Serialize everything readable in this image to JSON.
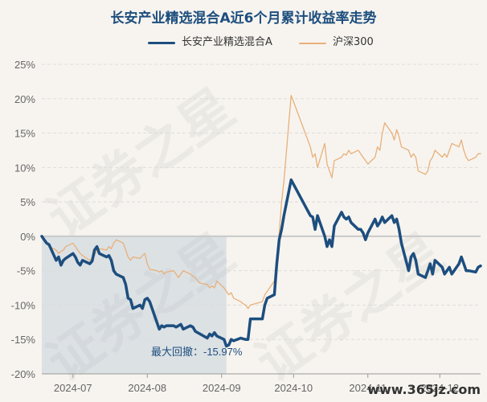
{
  "chart_data": {
    "type": "line",
    "title": "长安产业精选混合A近6个月累计收益率走势",
    "xlabel": "",
    "ylabel": "",
    "ylim": [
      -20,
      25
    ],
    "yticks": [
      25,
      20,
      15,
      10,
      5,
      0,
      -5,
      -10,
      -15,
      -20
    ],
    "ytick_labels": [
      "25%",
      "20%",
      "15%",
      "10%",
      "5%",
      "0%",
      "-5%",
      "-10%",
      "-15%",
      "-20%"
    ],
    "xtick_labels": [
      "2024-07",
      "2024-08",
      "2024-09",
      "2024-10",
      "2024-11",
      "2024-12"
    ],
    "grid": true,
    "legend_position": "top-center",
    "x_start": "2024-06-18",
    "x_end": "2024-12-18",
    "series": [
      {
        "name": "长安产业精选混合A",
        "color": "#1d4e7e",
        "points": [
          [
            "2024-06-18",
            0.0
          ],
          [
            "2024-06-19",
            -0.5
          ],
          [
            "2024-06-20",
            -1.0
          ],
          [
            "2024-06-21",
            -1.2
          ],
          [
            "2024-06-24",
            -3.5
          ],
          [
            "2024-06-25",
            -3.0
          ],
          [
            "2024-06-26",
            -4.2
          ],
          [
            "2024-06-27",
            -3.5
          ],
          [
            "2024-06-28",
            -3.2
          ],
          [
            "2024-07-01",
            -2.5
          ],
          [
            "2024-07-02",
            -3.0
          ],
          [
            "2024-07-03",
            -3.8
          ],
          [
            "2024-07-04",
            -4.2
          ],
          [
            "2024-07-05",
            -3.5
          ],
          [
            "2024-07-08",
            -4.0
          ],
          [
            "2024-07-09",
            -3.6
          ],
          [
            "2024-07-10",
            -2.0
          ],
          [
            "2024-07-11",
            -1.5
          ],
          [
            "2024-07-12",
            -2.5
          ],
          [
            "2024-07-15",
            -3.0
          ],
          [
            "2024-07-16",
            -2.8
          ],
          [
            "2024-07-17",
            -3.5
          ],
          [
            "2024-07-18",
            -5.0
          ],
          [
            "2024-07-19",
            -5.5
          ],
          [
            "2024-07-22",
            -6.0
          ],
          [
            "2024-07-23",
            -7.0
          ],
          [
            "2024-07-24",
            -9.0
          ],
          [
            "2024-07-25",
            -9.2
          ],
          [
            "2024-07-26",
            -10.5
          ],
          [
            "2024-07-29",
            -10.0
          ],
          [
            "2024-07-30",
            -10.5
          ],
          [
            "2024-07-31",
            -9.2
          ],
          [
            "2024-08-01",
            -9.0
          ],
          [
            "2024-08-02",
            -9.5
          ],
          [
            "2024-08-05",
            -12.5
          ],
          [
            "2024-08-06",
            -13.5
          ],
          [
            "2024-08-07",
            -13.0
          ],
          [
            "2024-08-08",
            -13.2
          ],
          [
            "2024-08-09",
            -13.0
          ],
          [
            "2024-08-12",
            -13.0
          ],
          [
            "2024-08-13",
            -13.2
          ],
          [
            "2024-08-14",
            -13.0
          ],
          [
            "2024-08-15",
            -12.8
          ],
          [
            "2024-08-16",
            -13.5
          ],
          [
            "2024-08-19",
            -13.0
          ],
          [
            "2024-08-20",
            -13.2
          ],
          [
            "2024-08-21",
            -13.8
          ],
          [
            "2024-08-22",
            -14.0
          ],
          [
            "2024-08-23",
            -14.2
          ],
          [
            "2024-08-26",
            -14.8
          ],
          [
            "2024-08-27",
            -14.2
          ],
          [
            "2024-08-28",
            -14.5
          ],
          [
            "2024-08-29",
            -14.0
          ],
          [
            "2024-08-30",
            -14.5
          ],
          [
            "2024-09-02",
            -15.0
          ],
          [
            "2024-09-03",
            -15.97
          ],
          [
            "2024-09-04",
            -15.8
          ],
          [
            "2024-09-05",
            -15.0
          ],
          [
            "2024-09-06",
            -15.2
          ],
          [
            "2024-09-09",
            -14.8
          ],
          [
            "2024-09-10",
            -14.9
          ],
          [
            "2024-09-11",
            -15.0
          ],
          [
            "2024-09-12",
            -15.0
          ],
          [
            "2024-09-13",
            -12.0
          ],
          [
            "2024-09-18",
            -12.0
          ],
          [
            "2024-09-19",
            -10.0
          ],
          [
            "2024-09-20",
            -9.0
          ],
          [
            "2024-09-23",
            -8.5
          ],
          [
            "2024-09-24",
            -4.0
          ],
          [
            "2024-09-25",
            -0.5
          ],
          [
            "2024-09-26",
            1.0
          ],
          [
            "2024-09-27",
            3.0
          ],
          [
            "2024-09-30",
            8.2
          ],
          [
            "2024-10-08",
            3.0
          ],
          [
            "2024-10-09",
            2.8
          ],
          [
            "2024-10-10",
            1.0
          ],
          [
            "2024-10-11",
            3.0
          ],
          [
            "2024-10-14",
            0.0
          ],
          [
            "2024-10-15",
            -1.5
          ],
          [
            "2024-10-16",
            -0.5
          ],
          [
            "2024-10-17",
            -1.5
          ],
          [
            "2024-10-18",
            1.5
          ],
          [
            "2024-10-21",
            3.5
          ],
          [
            "2024-10-22",
            2.8
          ],
          [
            "2024-10-23",
            2.5
          ],
          [
            "2024-10-24",
            2.8
          ],
          [
            "2024-10-25",
            2.0
          ],
          [
            "2024-10-28",
            1.0
          ],
          [
            "2024-10-29",
            1.0
          ],
          [
            "2024-10-30",
            0.5
          ],
          [
            "2024-10-31",
            -0.5
          ],
          [
            "2024-11-01",
            0.5
          ],
          [
            "2024-11-04",
            2.5
          ],
          [
            "2024-11-05",
            1.5
          ],
          [
            "2024-11-06",
            2.0
          ],
          [
            "2024-11-07",
            2.8
          ],
          [
            "2024-11-08",
            2.0
          ],
          [
            "2024-11-11",
            3.0
          ],
          [
            "2024-11-12",
            2.0
          ],
          [
            "2024-11-13",
            2.5
          ],
          [
            "2024-11-14",
            1.0
          ],
          [
            "2024-11-15",
            -1.0
          ],
          [
            "2024-11-18",
            -5.0
          ],
          [
            "2024-11-19",
            -3.0
          ],
          [
            "2024-11-20",
            -2.5
          ],
          [
            "2024-11-21",
            -3.5
          ],
          [
            "2024-11-22",
            -5.5
          ],
          [
            "2024-11-25",
            -6.0
          ],
          [
            "2024-11-26",
            -5.0
          ],
          [
            "2024-11-27",
            -4.0
          ],
          [
            "2024-11-28",
            -5.5
          ],
          [
            "2024-11-29",
            -3.5
          ],
          [
            "2024-12-02",
            -4.5
          ],
          [
            "2024-12-03",
            -5.5
          ],
          [
            "2024-12-04",
            -5.0
          ],
          [
            "2024-12-05",
            -4.5
          ],
          [
            "2024-12-06",
            -5.5
          ],
          [
            "2024-12-09",
            -4.0
          ],
          [
            "2024-12-10",
            -3.0
          ],
          [
            "2024-12-11",
            -4.0
          ],
          [
            "2024-12-12",
            -5.0
          ],
          [
            "2024-12-13",
            -5.0
          ],
          [
            "2024-12-16",
            -5.2
          ],
          [
            "2024-12-17",
            -4.5
          ],
          [
            "2024-12-18",
            -4.3
          ]
        ]
      },
      {
        "name": "沪深300",
        "color": "#e8b07a",
        "points": [
          [
            "2024-06-18",
            0.0
          ],
          [
            "2024-06-19",
            -0.5
          ],
          [
            "2024-06-20",
            -1.0
          ],
          [
            "2024-06-21",
            -1.5
          ],
          [
            "2024-06-24",
            -2.0
          ],
          [
            "2024-06-25",
            -2.5
          ],
          [
            "2024-06-26",
            -2.2
          ],
          [
            "2024-06-27",
            -2.0
          ],
          [
            "2024-06-28",
            -1.5
          ],
          [
            "2024-07-01",
            -1.0
          ],
          [
            "2024-07-02",
            -1.5
          ],
          [
            "2024-07-03",
            -2.0
          ],
          [
            "2024-07-04",
            -2.5
          ],
          [
            "2024-07-05",
            -2.8
          ],
          [
            "2024-07-08",
            -3.5
          ],
          [
            "2024-07-09",
            -3.2
          ],
          [
            "2024-07-10",
            -2.8
          ],
          [
            "2024-07-11",
            -2.0
          ],
          [
            "2024-07-12",
            -1.8
          ],
          [
            "2024-07-15",
            -2.0
          ],
          [
            "2024-07-16",
            -1.5
          ],
          [
            "2024-07-17",
            -1.8
          ],
          [
            "2024-07-18",
            -1.0
          ],
          [
            "2024-07-19",
            -0.5
          ],
          [
            "2024-07-22",
            -1.0
          ],
          [
            "2024-07-23",
            -2.0
          ],
          [
            "2024-07-24",
            -3.0
          ],
          [
            "2024-07-25",
            -3.5
          ],
          [
            "2024-07-26",
            -3.0
          ],
          [
            "2024-07-29",
            -3.2
          ],
          [
            "2024-07-30",
            -2.8
          ],
          [
            "2024-07-31",
            -2.5
          ],
          [
            "2024-08-01",
            -4.0
          ],
          [
            "2024-08-02",
            -4.8
          ],
          [
            "2024-08-05",
            -5.0
          ],
          [
            "2024-08-06",
            -5.2
          ],
          [
            "2024-08-07",
            -5.0
          ],
          [
            "2024-08-08",
            -5.5
          ],
          [
            "2024-08-09",
            -5.2
          ],
          [
            "2024-08-12",
            -5.0
          ],
          [
            "2024-08-13",
            -5.5
          ],
          [
            "2024-08-14",
            -6.0
          ],
          [
            "2024-08-15",
            -5.5
          ],
          [
            "2024-08-16",
            -5.0
          ],
          [
            "2024-08-19",
            -5.5
          ],
          [
            "2024-08-20",
            -5.8
          ],
          [
            "2024-08-21",
            -6.0
          ],
          [
            "2024-08-22",
            -6.5
          ],
          [
            "2024-08-23",
            -6.8
          ],
          [
            "2024-08-26",
            -7.0
          ],
          [
            "2024-08-27",
            -7.5
          ],
          [
            "2024-08-28",
            -7.2
          ],
          [
            "2024-08-29",
            -7.5
          ],
          [
            "2024-08-30",
            -6.5
          ],
          [
            "2024-09-02",
            -7.5
          ],
          [
            "2024-09-03",
            -8.0
          ],
          [
            "2024-09-04",
            -8.5
          ],
          [
            "2024-09-05",
            -8.2
          ],
          [
            "2024-09-06",
            -9.0
          ],
          [
            "2024-09-09",
            -9.5
          ],
          [
            "2024-09-10",
            -9.8
          ],
          [
            "2024-09-11",
            -10.0
          ],
          [
            "2024-09-12",
            -10.5
          ],
          [
            "2024-09-13",
            -10.0
          ],
          [
            "2024-09-18",
            -9.5
          ],
          [
            "2024-09-19",
            -8.5
          ],
          [
            "2024-09-20",
            -8.0
          ],
          [
            "2024-09-23",
            -6.5
          ],
          [
            "2024-09-24",
            -3.0
          ],
          [
            "2024-09-25",
            0.5
          ],
          [
            "2024-09-26",
            5.0
          ],
          [
            "2024-09-27",
            8.0
          ],
          [
            "2024-09-30",
            20.5
          ],
          [
            "2024-10-08",
            13.0
          ],
          [
            "2024-10-09",
            11.5
          ],
          [
            "2024-10-10",
            12.0
          ],
          [
            "2024-10-11",
            10.0
          ],
          [
            "2024-10-14",
            13.5
          ],
          [
            "2024-10-15",
            10.5
          ],
          [
            "2024-10-16",
            9.5
          ],
          [
            "2024-10-17",
            8.5
          ],
          [
            "2024-10-18",
            11.0
          ],
          [
            "2024-10-21",
            11.5
          ],
          [
            "2024-10-22",
            12.0
          ],
          [
            "2024-10-23",
            11.8
          ],
          [
            "2024-10-24",
            12.5
          ],
          [
            "2024-10-25",
            12.0
          ],
          [
            "2024-10-28",
            12.5
          ],
          [
            "2024-10-29",
            12.0
          ],
          [
            "2024-10-30",
            11.5
          ],
          [
            "2024-10-31",
            11.0
          ],
          [
            "2024-11-01",
            10.5
          ],
          [
            "2024-11-04",
            11.5
          ],
          [
            "2024-11-05",
            13.0
          ],
          [
            "2024-11-06",
            12.5
          ],
          [
            "2024-11-07",
            15.0
          ],
          [
            "2024-11-08",
            16.5
          ],
          [
            "2024-11-11",
            15.0
          ],
          [
            "2024-11-12",
            14.0
          ],
          [
            "2024-11-13",
            15.5
          ],
          [
            "2024-11-14",
            14.5
          ],
          [
            "2024-11-15",
            13.0
          ],
          [
            "2024-11-18",
            12.5
          ],
          [
            "2024-11-19",
            11.5
          ],
          [
            "2024-11-20",
            12.0
          ],
          [
            "2024-11-21",
            11.5
          ],
          [
            "2024-11-22",
            9.5
          ],
          [
            "2024-11-25",
            9.0
          ],
          [
            "2024-11-26",
            9.5
          ],
          [
            "2024-11-27",
            11.0
          ],
          [
            "2024-11-28",
            11.5
          ],
          [
            "2024-11-29",
            12.5
          ],
          [
            "2024-12-02",
            11.5
          ],
          [
            "2024-12-03",
            12.0
          ],
          [
            "2024-12-04",
            11.5
          ],
          [
            "2024-12-05",
            12.5
          ],
          [
            "2024-12-06",
            13.5
          ],
          [
            "2024-12-09",
            13.0
          ],
          [
            "2024-12-10",
            14.0
          ],
          [
            "2024-12-11",
            12.5
          ],
          [
            "2024-12-12",
            11.5
          ],
          [
            "2024-12-13",
            11.0
          ],
          [
            "2024-12-16",
            11.5
          ],
          [
            "2024-12-17",
            12.0
          ],
          [
            "2024-12-18",
            12.0
          ]
        ]
      }
    ],
    "max_drawdown": {
      "label": "最大回撤：-15.97%",
      "value": -15.97,
      "start": "2024-06-18",
      "end": "2024-09-03"
    }
  },
  "watermark": {
    "text": "证券之星"
  },
  "site_mark": {
    "text": "www.365jz.com"
  }
}
